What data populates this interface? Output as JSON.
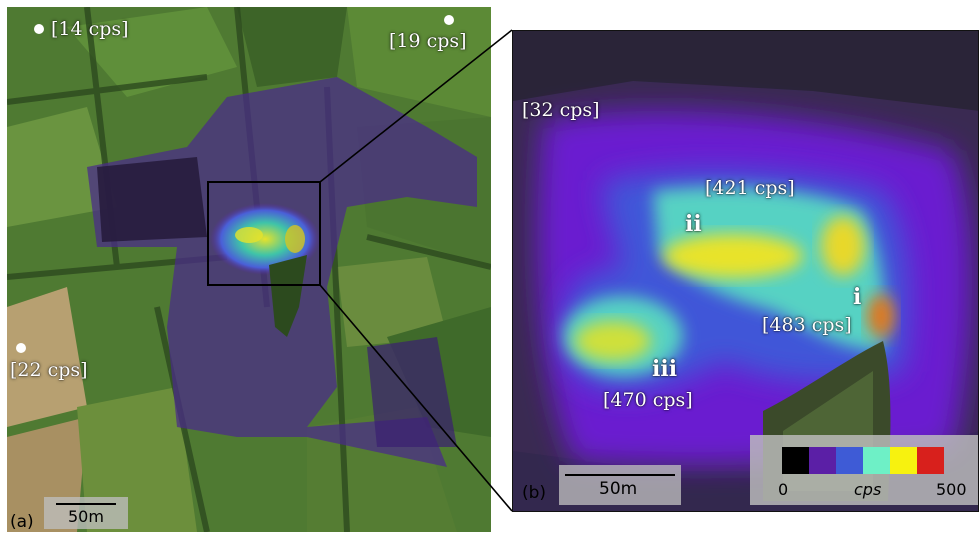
{
  "panel_a": {
    "tag": "(a)",
    "scale_label": "50m",
    "points": [
      {
        "label": "[14 cps]"
      },
      {
        "label": "[19 cps]"
      },
      {
        "label": "[22 cps]"
      }
    ]
  },
  "panel_b": {
    "tag": "(b)",
    "scale_label": "50m",
    "background_label": "[32 cps]",
    "hotspots": [
      {
        "id": "ii",
        "label": "[421 cps]"
      },
      {
        "id": "i",
        "label": "[483 cps]"
      },
      {
        "id": "iii",
        "label": "[470 cps]"
      }
    ]
  },
  "legend": {
    "min": "0",
    "unit": "cps",
    "max": "500",
    "colors": [
      "#000000",
      "#5b1fa6",
      "#3e5bd6",
      "#6ef0c6",
      "#f7f20f",
      "#d8201c"
    ]
  },
  "colors": {
    "field_green": "#4f7a32",
    "dark_green": "#2c4a1e",
    "field_tan": "#b7a071",
    "survey_purple": "#4a2a8a",
    "heat_yellow": "#e6e22a",
    "heat_cyan": "#39c7c9"
  }
}
